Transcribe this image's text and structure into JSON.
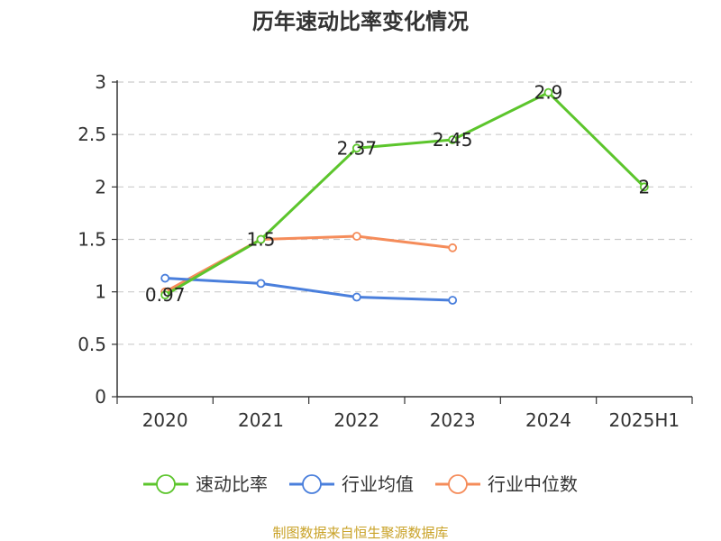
{
  "chart_data": {
    "type": "line",
    "title": "历年速动比率变化情况",
    "categories": [
      "2020",
      "2021",
      "2022",
      "2023",
      "2024",
      "2025H1"
    ],
    "ylim": [
      0,
      3
    ],
    "yticks": [
      "0",
      "0.5",
      "1",
      "1.5",
      "2",
      "2.5",
      "3"
    ],
    "grid": true,
    "legend_position": "bottom",
    "series": [
      {
        "name": "速动比率",
        "values": [
          0.97,
          1.5,
          2.37,
          2.45,
          2.9,
          2
        ],
        "labels": [
          "0.97",
          "1.5",
          "2.37",
          "2.45",
          "2.9",
          "2"
        ],
        "color": "#5cc52c"
      },
      {
        "name": "行业均值",
        "values": [
          1.13,
          1.08,
          0.95,
          0.92,
          null,
          null
        ],
        "color": "#4a7fdc"
      },
      {
        "name": "行业中位数",
        "values": [
          1.0,
          1.5,
          1.53,
          1.42,
          null,
          null
        ],
        "color": "#f58c5a"
      }
    ],
    "source": "制图数据来自恒生聚源数据库"
  }
}
